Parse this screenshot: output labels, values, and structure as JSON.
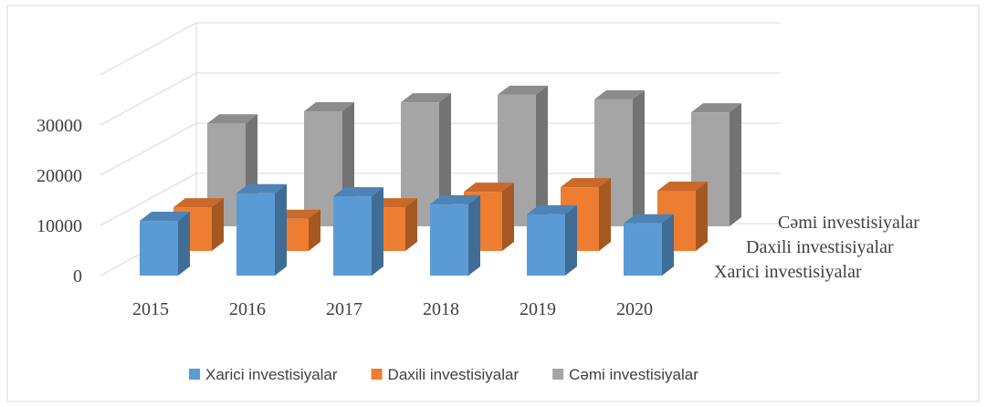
{
  "chart_data": {
    "type": "bar3d",
    "categories": [
      "2015",
      "2016",
      "2017",
      "2018",
      "2019",
      "2020"
    ],
    "series": [
      {
        "name": "Xarici investisiyalar",
        "color": "#5b9bd5",
        "values": [
          10900,
          16400,
          15800,
          14200,
          12200,
          10400
        ]
      },
      {
        "name": "Daxili investisiyalar",
        "color": "#ed7d31",
        "values": [
          8700,
          6400,
          8700,
          11800,
          12700,
          12000
        ]
      },
      {
        "name": "Cəmi investisiyalar",
        "color": "#a5a5a5",
        "values": [
          20500,
          22900,
          24700,
          26200,
          25300,
          22700
        ]
      }
    ],
    "ylim": [
      0,
      40000
    ],
    "yticks": [
      0,
      10000,
      20000,
      30000
    ],
    "grid": true,
    "legend": "bottom"
  }
}
